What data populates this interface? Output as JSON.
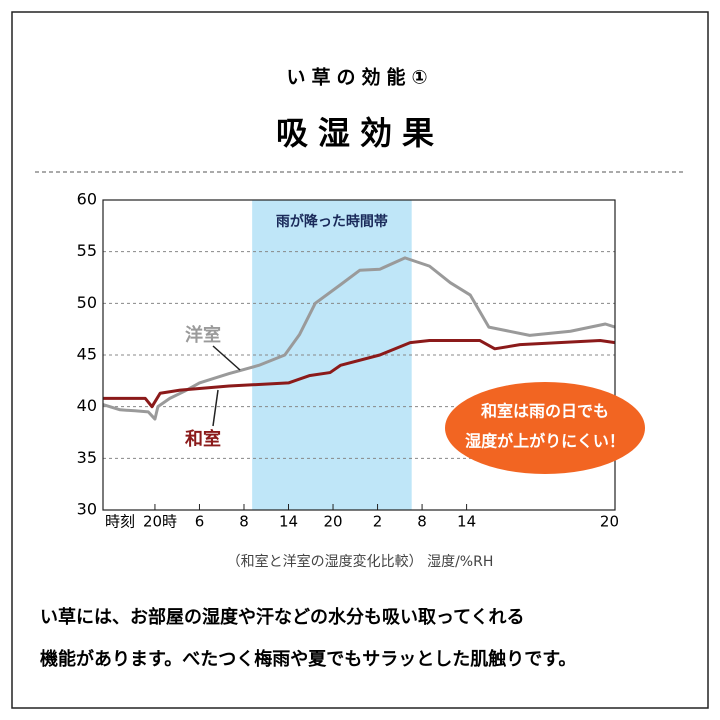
{
  "header": {
    "subtitle": "い草の効能①",
    "title": "吸湿効果"
  },
  "chart_data": {
    "type": "line",
    "xlabel": "時刻",
    "caption": "（和室と洋室の湿度変化比較） 湿度/%RH",
    "band": {
      "label": "雨が降った時間帯",
      "x": [
        13.1,
        34.6
      ],
      "color": "#bfe6f8"
    },
    "annotation": [
      "和室は雨の日でも",
      "湿度が上がりにくい！"
    ],
    "annotation_color": "#f26522",
    "xlim": [
      -7,
      62
    ],
    "xticks": [
      {
        "value": 0,
        "label": "20時"
      },
      6,
      {
        "value": 12,
        "label": "8"
      },
      {
        "value": 18,
        "label": "14"
      },
      {
        "value": 24,
        "label": "20"
      },
      {
        "value": 30,
        "label": "2"
      },
      {
        "value": 36,
        "label": "8"
      },
      {
        "value": 42,
        "label": "14"
      },
      {
        "value": 62,
        "label": "20"
      }
    ],
    "ylim": [
      30,
      60
    ],
    "yticks": [
      30,
      35,
      40,
      45,
      50,
      55,
      60
    ],
    "grid": true,
    "series": [
      {
        "name": "洋室",
        "color": "#9a9a9a",
        "x": [
          -7,
          -4.7,
          -2.7,
          -0.9,
          0,
          0.4,
          2,
          4,
          6,
          10,
          14,
          17.5,
          19.5,
          21.6,
          25,
          27.6,
          30.3,
          33.7,
          37,
          39.8,
          42.5,
          45,
          50.5,
          56,
          60.7,
          62
        ],
        "values": [
          40.2,
          39.7,
          39.6,
          39.5,
          38.8,
          40,
          40.8,
          41.5,
          42.3,
          43.2,
          44,
          45,
          47,
          50,
          51.8,
          53.2,
          53.3,
          54.4,
          53.6,
          52,
          50.8,
          47.7,
          46.9,
          47.3,
          48,
          47.7
        ]
      },
      {
        "name": "和室",
        "color": "#8b1a1a",
        "x": [
          -7,
          -1.3,
          -0.4,
          0.7,
          3.4,
          10,
          18,
          20.8,
          23.6,
          25,
          30.3,
          34.4,
          37,
          43.8,
          45.8,
          49.2,
          60,
          62
        ],
        "values": [
          40.8,
          40.8,
          40,
          41.3,
          41.6,
          42,
          42.3,
          43,
          43.3,
          44,
          45,
          46.2,
          46.4,
          46.4,
          45.6,
          46,
          46.4,
          46.2
        ]
      }
    ]
  },
  "body": [
    "い草には、お部屋の湿度や汗などの水分も吸い取ってくれる",
    "機能があります。べたつく梅雨や夏でもサラッとした肌触りです。"
  ]
}
